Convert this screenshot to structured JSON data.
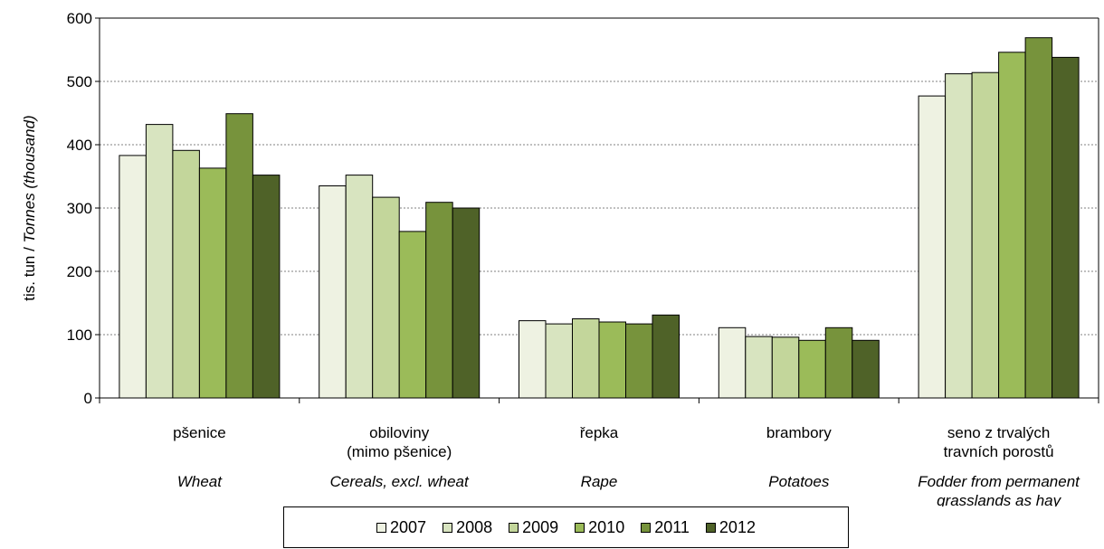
{
  "chart_data": {
    "type": "bar",
    "ylabel_cs": "tis. tun / ",
    "ylabel_en": "Tonnes (thousand)",
    "ylim": [
      0,
      600
    ],
    "yticks": [
      "0",
      "100",
      "200",
      "300",
      "400",
      "500",
      "600"
    ],
    "grid": "horizontal dotted",
    "legend_position": "bottom",
    "categories": [
      {
        "cs": [
          "pšenice"
        ],
        "en": [
          "Wheat"
        ]
      },
      {
        "cs": [
          "obiloviny",
          "(mimo pšenice)"
        ],
        "en": [
          "Cereals, excl. wheat"
        ]
      },
      {
        "cs": [
          "řepka"
        ],
        "en": [
          "Rape"
        ]
      },
      {
        "cs": [
          "brambory"
        ],
        "en": [
          "Potatoes"
        ]
      },
      {
        "cs": [
          "seno z trvalých",
          "travních porostů"
        ],
        "en": [
          "Fodder  from permanent",
          "grasslands as hay"
        ]
      }
    ],
    "series": [
      {
        "name": "2007",
        "color": "#eef2e2",
        "values": [
          383,
          335,
          122,
          111,
          477
        ]
      },
      {
        "name": "2008",
        "color": "#d8e4c0",
        "values": [
          432,
          352,
          117,
          97,
          512
        ]
      },
      {
        "name": "2009",
        "color": "#c3d69b",
        "values": [
          391,
          317,
          125,
          96,
          514
        ]
      },
      {
        "name": "2010",
        "color": "#9bbb59",
        "values": [
          363,
          263,
          120,
          91,
          546
        ]
      },
      {
        "name": "2011",
        "color": "#77933c",
        "values": [
          449,
          309,
          117,
          111,
          569
        ]
      },
      {
        "name": "2012",
        "color": "#4f6228",
        "values": [
          352,
          300,
          131,
          91,
          538
        ]
      }
    ]
  }
}
